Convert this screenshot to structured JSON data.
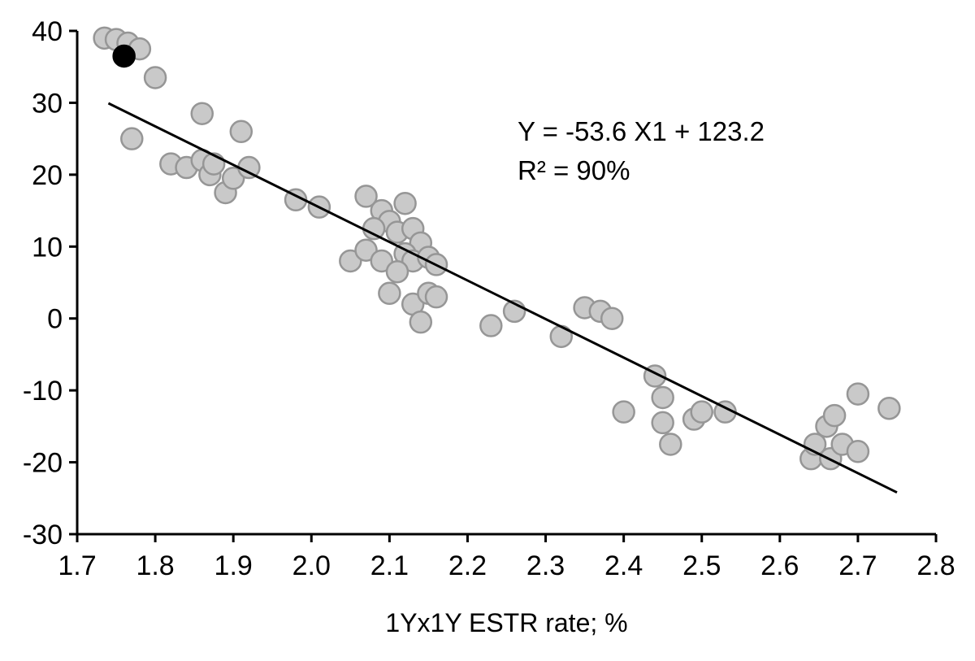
{
  "chart_data": {
    "type": "scatter",
    "title": "",
    "xlabel": "1Yx1Y ESTR rate; %",
    "ylabel": "",
    "xlim": [
      1.7,
      2.8
    ],
    "ylim": [
      -30,
      40
    ],
    "x_tick_labels": [
      "1.7",
      "1.8",
      "1.9",
      "2.0",
      "2.1",
      "2.2",
      "2.3",
      "2.4",
      "2.5",
      "2.6",
      "2.7",
      "2.8"
    ],
    "x_tick_values": [
      1.7,
      1.8,
      1.9,
      2.0,
      2.1,
      2.2,
      2.3,
      2.4,
      2.5,
      2.6,
      2.7,
      2.8
    ],
    "y_tick_labels": [
      "40",
      "30",
      "20",
      "10",
      "0",
      "-10",
      "-20",
      "-30"
    ],
    "y_tick_values": [
      40,
      30,
      20,
      10,
      0,
      -10,
      -20,
      -30
    ],
    "grid": false,
    "legend": "none",
    "annotation": {
      "line1": "Y = -53.6 X1 + 123.2",
      "line2": "R² = 90%"
    },
    "regression": {
      "slope": -53.6,
      "intercept": 123.2,
      "x_start": 1.74,
      "x_end": 2.75,
      "color": "#000000",
      "width": 3
    },
    "series": [
      {
        "name": "observations",
        "marker": "circle",
        "fill": "#c9c9c9",
        "stroke": "#969696",
        "radius": 13,
        "points": [
          [
            1.735,
            39.0
          ],
          [
            1.75,
            38.8
          ],
          [
            1.765,
            38.3
          ],
          [
            1.78,
            37.5
          ],
          [
            1.8,
            33.5
          ],
          [
            1.77,
            25.0
          ],
          [
            1.86,
            28.5
          ],
          [
            1.91,
            26.0
          ],
          [
            1.82,
            21.5
          ],
          [
            1.84,
            21.0
          ],
          [
            1.86,
            22.0
          ],
          [
            1.87,
            20.0
          ],
          [
            1.875,
            21.5
          ],
          [
            1.89,
            17.5
          ],
          [
            1.9,
            19.5
          ],
          [
            1.92,
            21.0
          ],
          [
            1.98,
            16.5
          ],
          [
            2.01,
            15.5
          ],
          [
            2.07,
            17.0
          ],
          [
            2.09,
            15.0
          ],
          [
            2.1,
            13.5
          ],
          [
            2.12,
            16.0
          ],
          [
            2.08,
            12.5
          ],
          [
            2.11,
            12.0
          ],
          [
            2.13,
            12.5
          ],
          [
            2.14,
            10.5
          ],
          [
            2.05,
            8.0
          ],
          [
            2.07,
            9.5
          ],
          [
            2.09,
            8.0
          ],
          [
            2.12,
            9.0
          ],
          [
            2.13,
            8.0
          ],
          [
            2.15,
            8.5
          ],
          [
            2.16,
            7.5
          ],
          [
            2.11,
            6.5
          ],
          [
            2.1,
            3.5
          ],
          [
            2.13,
            2.0
          ],
          [
            2.15,
            3.5
          ],
          [
            2.16,
            3.0
          ],
          [
            2.14,
            -0.5
          ],
          [
            2.23,
            -1.0
          ],
          [
            2.26,
            1.0
          ],
          [
            2.32,
            -2.5
          ],
          [
            2.35,
            1.5
          ],
          [
            2.37,
            1.0
          ],
          [
            2.385,
            0.0
          ],
          [
            2.4,
            -13.0
          ],
          [
            2.44,
            -8.0
          ],
          [
            2.45,
            -11.0
          ],
          [
            2.45,
            -14.5
          ],
          [
            2.46,
            -17.5
          ],
          [
            2.49,
            -14.0
          ],
          [
            2.5,
            -13.0
          ],
          [
            2.53,
            -13.0
          ],
          [
            2.64,
            -19.5
          ],
          [
            2.645,
            -17.5
          ],
          [
            2.66,
            -15.0
          ],
          [
            2.665,
            -19.5
          ],
          [
            2.67,
            -13.5
          ],
          [
            2.68,
            -17.5
          ],
          [
            2.7,
            -10.5
          ],
          [
            2.7,
            -18.5
          ],
          [
            2.74,
            -12.5
          ]
        ]
      },
      {
        "name": "highlighted-observation",
        "marker": "circle",
        "fill": "#000000",
        "stroke": "#000000",
        "radius": 13,
        "points": [
          [
            1.76,
            36.5
          ]
        ]
      }
    ],
    "axis_color": "#000000",
    "tick_font_size": 34,
    "tick_color": "#000000"
  }
}
